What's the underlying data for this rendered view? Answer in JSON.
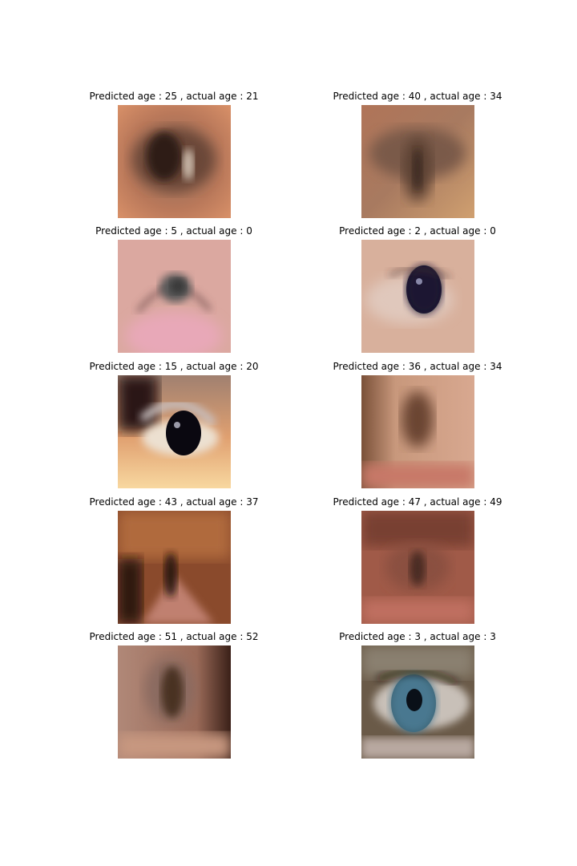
{
  "panels": [
    {
      "title": "Predicted age : 25 , actual age : 21",
      "image": "blurred-eye-brown-iris-warm-skin",
      "predicted_age": 25,
      "actual_age": 21
    },
    {
      "title": "Predicted age : 40 , actual age : 34",
      "image": "blurred-eye-brown-tan-skin",
      "predicted_age": 40,
      "actual_age": 34
    },
    {
      "title": "Predicted age : 5 , actual age : 0",
      "image": "infant-eye-grey-iris-pink-skin",
      "predicted_age": 5,
      "actual_age": 0
    },
    {
      "title": "Predicted age : 2 , actual age : 0",
      "image": "infant-eye-dark-iris-light-skin",
      "predicted_age": 2,
      "actual_age": 0
    },
    {
      "title": "Predicted age : 15 , actual age : 20",
      "image": "eye-dark-iris-lashes-bright-skin",
      "predicted_age": 15,
      "actual_age": 20
    },
    {
      "title": "Predicted age : 36 , actual age : 34",
      "image": "blurred-eye-brown-beige-skin",
      "predicted_age": 36,
      "actual_age": 34
    },
    {
      "title": "Predicted age : 43 , actual age : 37",
      "image": "eye-with-brown-hair-over-it",
      "predicted_age": 43,
      "actual_age": 37
    },
    {
      "title": "Predicted age : 47 , actual age : 49",
      "image": "blurred-eye-reddish-skin",
      "predicted_age": 47,
      "actual_age": 49
    },
    {
      "title": "Predicted age : 51 , actual age : 52",
      "image": "blurred-eye-brown-shadow-right",
      "predicted_age": 51,
      "actual_age": 52
    },
    {
      "title": "Predicted age : 3 , actual age : 3",
      "image": "eye-blue-iris-close-up",
      "predicted_age": 3,
      "actual_age": 3
    }
  ]
}
